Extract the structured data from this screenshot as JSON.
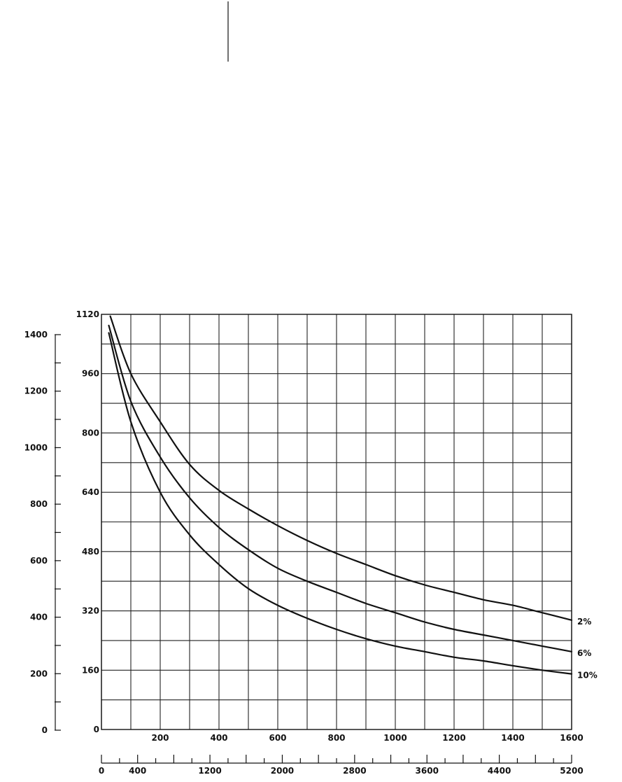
{
  "chart_data": {
    "type": "line",
    "title": "",
    "xlabel": "",
    "ylabel": "",
    "grid": true,
    "xlim": [
      0,
      1600
    ],
    "ylim": [
      0,
      1120
    ],
    "x_ticks": [
      "200",
      "400",
      "600",
      "800",
      "1000",
      "1200",
      "1400",
      "1600"
    ],
    "y_ticks": [
      "0",
      "160",
      "320",
      "480",
      "640",
      "800",
      "960",
      "1120"
    ],
    "secondary_y_axis": {
      "position": "left",
      "range": [
        0,
        1400
      ],
      "ticks": [
        "0",
        "200",
        "400",
        "600",
        "800",
        "1000",
        "1200",
        "1400"
      ]
    },
    "secondary_x_axis": {
      "position": "bottom",
      "range": [
        0,
        5200
      ],
      "ticks": [
        "0",
        "400",
        "1200",
        "2000",
        "2800",
        "3600",
        "4400",
        "5200"
      ]
    },
    "series": [
      {
        "name": "2%",
        "x": [
          30,
          100,
          200,
          300,
          400,
          500,
          600,
          700,
          800,
          900,
          1000,
          1100,
          1200,
          1300,
          1400,
          1500,
          1600
        ],
        "y": [
          1115,
          960,
          830,
          715,
          645,
          595,
          550,
          510,
          475,
          445,
          415,
          390,
          370,
          350,
          335,
          315,
          295
        ]
      },
      {
        "name": "6%",
        "x": [
          25,
          100,
          200,
          300,
          400,
          500,
          600,
          700,
          800,
          900,
          1000,
          1100,
          1200,
          1300,
          1400,
          1500,
          1600
        ],
        "y": [
          1090,
          885,
          735,
          625,
          545,
          485,
          435,
          400,
          370,
          340,
          315,
          290,
          270,
          255,
          240,
          225,
          210
        ]
      },
      {
        "name": "10%",
        "x": [
          25,
          100,
          200,
          300,
          400,
          500,
          600,
          700,
          800,
          900,
          1000,
          1100,
          1200,
          1300,
          1400,
          1500,
          1600
        ],
        "y": [
          1070,
          830,
          640,
          525,
          445,
          380,
          335,
          300,
          270,
          245,
          225,
          210,
          195,
          185,
          172,
          160,
          150
        ]
      }
    ]
  }
}
